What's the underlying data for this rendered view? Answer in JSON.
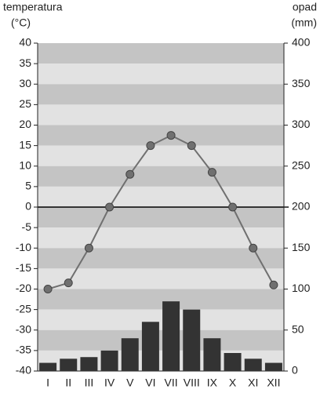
{
  "chart_data": {
    "type": "combo",
    "y_label_line1": "temperatura",
    "y_label_line2": "(°C)",
    "y2_label_line1": "opad",
    "y2_label_line2": "(mm)",
    "categories": [
      "I",
      "II",
      "III",
      "IV",
      "V",
      "VI",
      "VII",
      "VIII",
      "IX",
      "X",
      "XI",
      "XII"
    ],
    "series": [
      {
        "kind": "line",
        "color": "#707070",
        "values": [
          -20,
          -18.5,
          -10,
          0,
          8,
          15,
          17.5,
          15,
          8.5,
          0,
          -10,
          -19
        ]
      },
      {
        "kind": "bar",
        "axis": "y2",
        "color": "#333333",
        "values": [
          10,
          15,
          17,
          25,
          40,
          60,
          85,
          75,
          40,
          22,
          15,
          10
        ]
      }
    ],
    "ylim": [
      -40,
      40
    ],
    "yticks": [
      40,
      35,
      30,
      25,
      20,
      15,
      10,
      5,
      0,
      -5,
      -10,
      -15,
      -20,
      -25,
      -30,
      -35,
      -40
    ],
    "y2lim": [
      0,
      400
    ],
    "y2ticks": [
      400,
      350,
      300,
      250,
      200,
      150,
      100,
      50,
      0
    ],
    "band_colors": [
      "#c4c4c4",
      "#e2e2e2"
    ],
    "zero_line": true
  }
}
